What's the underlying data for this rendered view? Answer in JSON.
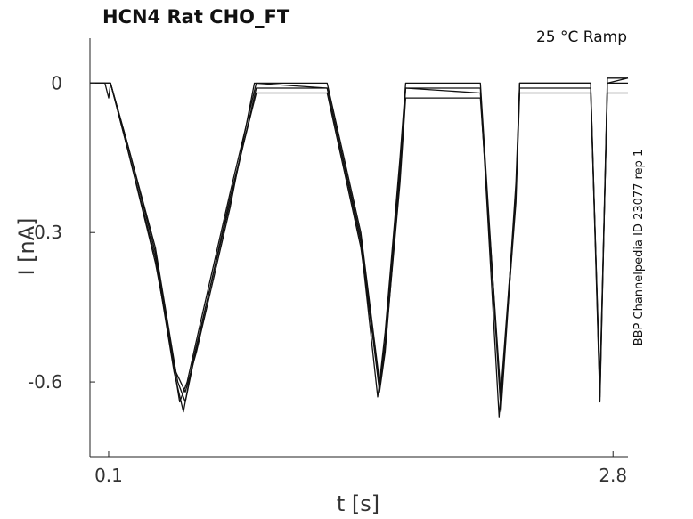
{
  "chart_data": {
    "type": "line",
    "title": "HCN4  Rat  CHO_FT",
    "condition": "25 °C  Ramp",
    "side_label": "BBP Channelpedia ID 23077 rep 1",
    "xlabel": "t [s]",
    "ylabel": "I [nA]",
    "xlim": [
      0.0,
      2.88
    ],
    "ylim": [
      -0.75,
      0.09
    ],
    "x_ticks": [
      {
        "value": 0.1,
        "label": "0.1"
      },
      {
        "value": 2.8,
        "label": "2.8"
      }
    ],
    "y_ticks": [
      {
        "value": 0,
        "label": "0"
      },
      {
        "value": -0.3,
        "label": "-0.3"
      },
      {
        "value": -0.6,
        "label": "-0.6"
      }
    ],
    "grid": false,
    "line_color": "#111111",
    "series": [
      {
        "points": [
          [
            0.0,
            0.0
          ],
          [
            0.08,
            0.0
          ],
          [
            0.1,
            -0.03
          ],
          [
            0.11,
            0.0
          ],
          [
            0.2,
            -0.12
          ],
          [
            0.35,
            -0.34
          ],
          [
            0.48,
            -0.64
          ],
          [
            0.52,
            -0.6
          ],
          [
            0.58,
            -0.5
          ],
          [
            0.75,
            -0.22
          ],
          [
            0.89,
            0.0
          ],
          [
            1.27,
            0.0
          ],
          [
            1.45,
            -0.3
          ],
          [
            1.55,
            -0.6
          ],
          [
            1.58,
            -0.5
          ],
          [
            1.66,
            -0.15
          ],
          [
            1.69,
            0.0
          ],
          [
            2.09,
            0.0
          ],
          [
            2.2,
            -0.65
          ],
          [
            2.28,
            -0.2
          ],
          [
            2.3,
            0.0
          ],
          [
            2.68,
            0.0
          ],
          [
            2.73,
            -0.63
          ],
          [
            2.77,
            0.0
          ],
          [
            2.88,
            0.01
          ]
        ]
      },
      {
        "points": [
          [
            0.0,
            0.0
          ],
          [
            0.08,
            0.0
          ],
          [
            0.11,
            0.0
          ],
          [
            0.2,
            -0.13
          ],
          [
            0.35,
            -0.35
          ],
          [
            0.45,
            -0.58
          ],
          [
            0.5,
            -0.66
          ],
          [
            0.55,
            -0.56
          ],
          [
            0.75,
            -0.24
          ],
          [
            0.89,
            -0.01
          ],
          [
            1.27,
            -0.01
          ],
          [
            1.45,
            -0.32
          ],
          [
            1.54,
            -0.63
          ],
          [
            1.58,
            -0.52
          ],
          [
            1.66,
            -0.17
          ],
          [
            1.69,
            -0.01
          ],
          [
            2.09,
            -0.01
          ],
          [
            2.19,
            -0.67
          ],
          [
            2.28,
            -0.22
          ],
          [
            2.3,
            0.0
          ],
          [
            2.68,
            0.0
          ],
          [
            2.73,
            -0.62
          ],
          [
            2.77,
            0.01
          ],
          [
            2.88,
            0.01
          ]
        ]
      },
      {
        "points": [
          [
            0.0,
            0.0
          ],
          [
            0.08,
            0.0
          ],
          [
            0.11,
            0.0
          ],
          [
            0.2,
            -0.12
          ],
          [
            0.35,
            -0.33
          ],
          [
            0.46,
            -0.58
          ],
          [
            0.51,
            -0.62
          ],
          [
            0.57,
            -0.54
          ],
          [
            0.75,
            -0.25
          ],
          [
            0.88,
            0.0
          ],
          [
            1.27,
            -0.01
          ],
          [
            1.45,
            -0.31
          ],
          [
            1.55,
            -0.62
          ],
          [
            1.58,
            -0.54
          ],
          [
            1.66,
            -0.18
          ],
          [
            1.69,
            -0.01
          ],
          [
            2.09,
            -0.02
          ],
          [
            2.2,
            -0.66
          ],
          [
            2.28,
            -0.22
          ],
          [
            2.3,
            -0.01
          ],
          [
            2.68,
            -0.01
          ],
          [
            2.73,
            -0.64
          ],
          [
            2.77,
            0.0
          ],
          [
            2.88,
            0.0
          ]
        ]
      },
      {
        "points": [
          [
            0.0,
            0.0
          ],
          [
            0.08,
            0.0
          ],
          [
            0.11,
            0.0
          ],
          [
            0.2,
            -0.13
          ],
          [
            0.35,
            -0.36
          ],
          [
            0.47,
            -0.6
          ],
          [
            0.51,
            -0.64
          ],
          [
            0.56,
            -0.55
          ],
          [
            0.75,
            -0.23
          ],
          [
            0.89,
            -0.02
          ],
          [
            1.27,
            -0.02
          ],
          [
            1.45,
            -0.33
          ],
          [
            1.55,
            -0.61
          ],
          [
            1.58,
            -0.53
          ],
          [
            1.66,
            -0.2
          ],
          [
            1.69,
            -0.03
          ],
          [
            2.09,
            -0.03
          ],
          [
            2.2,
            -0.63
          ],
          [
            2.28,
            -0.24
          ],
          [
            2.3,
            -0.02
          ],
          [
            2.68,
            -0.02
          ],
          [
            2.73,
            -0.6
          ],
          [
            2.77,
            -0.02
          ],
          [
            2.88,
            -0.02
          ]
        ]
      }
    ]
  }
}
